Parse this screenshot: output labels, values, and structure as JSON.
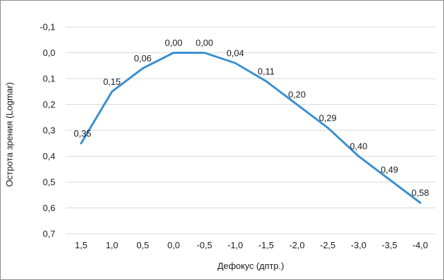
{
  "chart_data": {
    "type": "line",
    "title": "",
    "xlabel": "Дефокус (дптр.)",
    "ylabel": "Острота зрения (Logmar)",
    "y_inverted": true,
    "ylim": [
      -0.1,
      0.7
    ],
    "yticks": [
      -0.1,
      0.0,
      0.1,
      0.2,
      0.3,
      0.4,
      0.5,
      0.6,
      0.7
    ],
    "ytick_labels": [
      "-0,1",
      "0,0",
      "0,1",
      "0,2",
      "0,3",
      "0,4",
      "0,5",
      "0,6",
      "0,7"
    ],
    "grid": "horizontal",
    "legend": "none",
    "categories": [
      "1,5",
      "1,0",
      "0,5",
      "0,0",
      "-0,5",
      "-1,0",
      "-1,5",
      "-2,0",
      "-2,5",
      "-3,0",
      "-3,5",
      "-4,0"
    ],
    "series": [
      {
        "values": [
          0.35,
          0.15,
          0.06,
          0.0,
          0.0,
          0.04,
          0.11,
          0.2,
          0.29,
          0.4,
          0.49,
          0.58
        ],
        "data_labels": [
          "0,35",
          "0,15",
          "0,06",
          "0,00",
          "0,00",
          "0,04",
          "0,11",
          "0,20",
          "0,29",
          "0,40",
          "0,49",
          "0,58"
        ],
        "color": "#3a8fd0"
      }
    ]
  },
  "colors": {
    "line": "#3a8fd0",
    "grid": "#d9d9d9",
    "axis": "#bfbfbf"
  }
}
